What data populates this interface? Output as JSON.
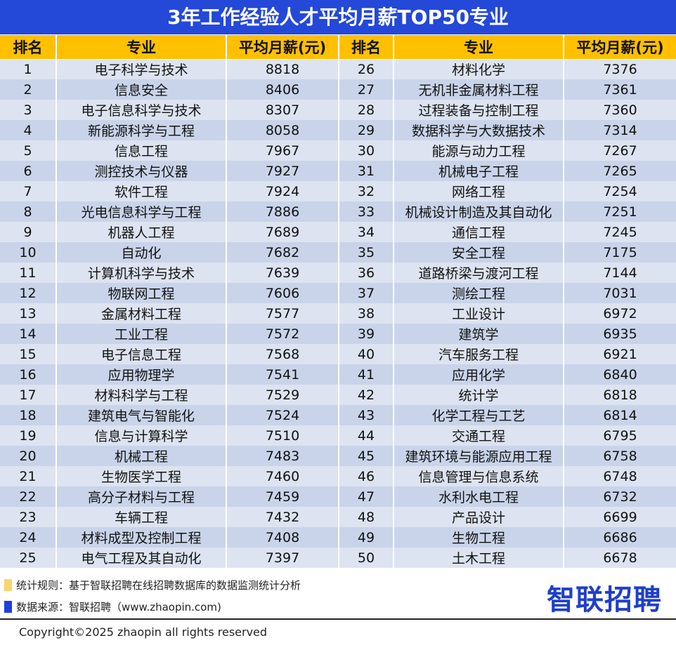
{
  "title": "3年工作经验人才平均月薪TOP50专业",
  "headers": [
    "排名",
    "专业",
    "平均月薪(元)",
    "排名",
    "专业",
    "平均月薪(元)"
  ],
  "rows": [
    [
      "1",
      "电子科学与技术",
      "8818",
      "26",
      "材料化学",
      "7376"
    ],
    [
      "2",
      "信息安全",
      "8406",
      "27",
      "无机非金属材料工程",
      "7361"
    ],
    [
      "3",
      "电子信息科学与技术",
      "8307",
      "28",
      "过程装备与控制工程",
      "7360"
    ],
    [
      "4",
      "新能源科学与工程",
      "8058",
      "29",
      "数据科学与大数据技术",
      "7314"
    ],
    [
      "5",
      "信息工程",
      "7967",
      "30",
      "能源与动力工程",
      "7267"
    ],
    [
      "6",
      "测控技术与仪器",
      "7927",
      "31",
      "机械电子工程",
      "7265"
    ],
    [
      "7",
      "软件工程",
      "7924",
      "32",
      "网络工程",
      "7254"
    ],
    [
      "8",
      "光电信息科学与工程",
      "7886",
      "33",
      "机械设计制造及其自动化",
      "7251"
    ],
    [
      "9",
      "机器人工程",
      "7689",
      "34",
      "通信工程",
      "7245"
    ],
    [
      "10",
      "自动化",
      "7682",
      "35",
      "安全工程",
      "7175"
    ],
    [
      "11",
      "计算机科学与技术",
      "7639",
      "36",
      "道路桥梁与渡河工程",
      "7144"
    ],
    [
      "12",
      "物联网工程",
      "7606",
      "37",
      "测绘工程",
      "7031"
    ],
    [
      "13",
      "金属材料工程",
      "7577",
      "38",
      "工业设计",
      "6972"
    ],
    [
      "14",
      "工业工程",
      "7572",
      "39",
      "建筑学",
      "6935"
    ],
    [
      "15",
      "电子信息工程",
      "7568",
      "40",
      "汽车服务工程",
      "6921"
    ],
    [
      "16",
      "应用物理学",
      "7541",
      "41",
      "应用化学",
      "6840"
    ],
    [
      "17",
      "材料科学与工程",
      "7529",
      "42",
      "统计学",
      "6818"
    ],
    [
      "18",
      "建筑电气与智能化",
      "7524",
      "43",
      "化学工程与工艺",
      "6814"
    ],
    [
      "19",
      "信息与计算科学",
      "7510",
      "44",
      "交通工程",
      "6795"
    ],
    [
      "20",
      "机械工程",
      "7483",
      "45",
      "建筑环境与能源应用工程",
      "6758"
    ],
    [
      "21",
      "生物医学工程",
      "7460",
      "46",
      "信息管理与信息系统",
      "6748"
    ],
    [
      "22",
      "高分子材料与工程",
      "7459",
      "47",
      "水利水电工程",
      "6732"
    ],
    [
      "23",
      "车辆工程",
      "7432",
      "48",
      "产品设计",
      "6699"
    ],
    [
      "24",
      "材料成型及控制工程",
      "7408",
      "49",
      "生物工程",
      "6686"
    ],
    [
      "25",
      "电气工程及其自动化",
      "7397",
      "50",
      "土木工程",
      "6678"
    ]
  ],
  "legend": [
    {
      "text": "统计规则：基于智联招聘在线招聘数据库的数据监测统计分析",
      "color": "#f9d66b"
    },
    {
      "text": "数据来源：智联招聘（www.zhaopin.com)",
      "color": "#1f3fe0"
    }
  ],
  "logo": "智联招聘",
  "watermark": "智联招聘",
  "copyright": "Copyright©2025 zhaopin all rights reserved"
}
